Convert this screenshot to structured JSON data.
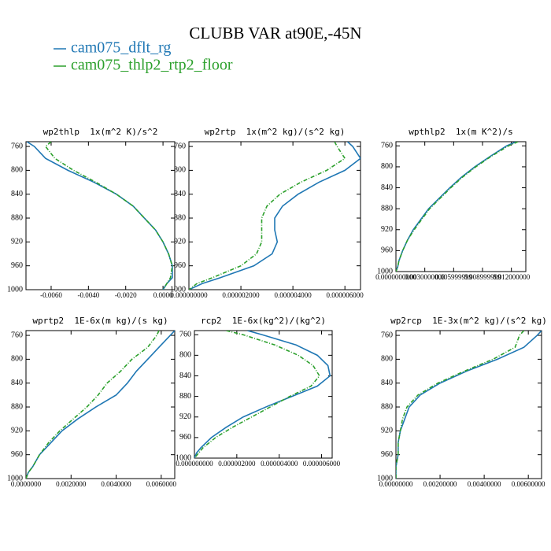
{
  "title": "CLUBB VAR at90E,-45N",
  "chart_data": [
    {
      "type": "line",
      "title": "wp2thlp  1x(m^2 K)/s^2",
      "y": [
        752,
        760,
        780,
        800,
        820,
        840,
        860,
        880,
        900,
        920,
        940,
        960,
        980,
        990,
        1000
      ],
      "ylim": [
        1000,
        752
      ],
      "yticks": [
        760,
        800,
        840,
        880,
        920,
        960,
        1000
      ],
      "xlim": [
        -0.00735,
        0.00063
      ],
      "xticks": [
        {
          "value": -0.006,
          "label": "-0.0060"
        },
        {
          "value": -0.004,
          "label": "-0.0040"
        },
        {
          "value": -0.002,
          "label": "-0.0020"
        },
        {
          "value": 0,
          "label": "0.0000"
        }
      ],
      "series": [
        {
          "name": "cam075_dflt_rg",
          "color": "#1f77b4",
          "values": [
            -0.0073,
            -0.0069,
            -0.0063,
            -0.0051,
            -0.0037,
            -0.0025,
            -0.0016,
            -0.001,
            -0.0004,
            0.0,
            0.0003,
            0.0005,
            0.0005,
            0.0002,
            0.0
          ]
        },
        {
          "name": "cam075_thlp2_rtp2_floor",
          "color": "#2ca02c",
          "values": [
            -0.006,
            -0.0063,
            -0.0058,
            -0.0048,
            -0.0036,
            -0.0025,
            -0.0016,
            -0.001,
            -0.0004,
            0.0,
            0.0003,
            0.0005,
            0.0004,
            0.0002,
            0.0
          ]
        }
      ]
    },
    {
      "type": "line",
      "title": "wp2rtp  1x(m^2 kg)/(s^2 kg)",
      "y": [
        752,
        760,
        780,
        800,
        820,
        840,
        860,
        880,
        900,
        920,
        940,
        960,
        980,
        990,
        1000
      ],
      "ylim": [
        1000,
        752
      ],
      "yticks": [
        760,
        800,
        840,
        880,
        920,
        960,
        1000
      ],
      "xlim": [
        0,
        6.6e-06
      ],
      "xticks": [
        {
          "value": 0,
          "label": "0.000000000"
        },
        {
          "value": 2e-06,
          "label": "0.000002000"
        },
        {
          "value": 4e-06,
          "label": "0.000004000"
        },
        {
          "value": 6e-06,
          "label": "0.000006000"
        }
      ],
      "series": [
        {
          "name": "cam075_dflt_rg",
          "color": "#1f77b4",
          "values": [
            6.1e-06,
            6.3e-06,
            6.6e-06,
            6e-06,
            5e-06,
            4.2e-06,
            3.6e-06,
            3.3e-06,
            3.3e-06,
            3.4e-06,
            3.2e-06,
            2.5e-06,
            1.2e-06,
            5e-07,
            0.0
          ]
        },
        {
          "name": "cam075_thlp2_rtp2_floor",
          "color": "#2ca02c",
          "values": [
            5.6e-06,
            5.7e-06,
            6e-06,
            5.3e-06,
            4.3e-06,
            3.5e-06,
            3e-06,
            2.8e-06,
            2.8e-06,
            2.8e-06,
            2.6e-06,
            2e-06,
            9e-07,
            3e-07,
            0.0
          ]
        }
      ]
    },
    {
      "type": "line",
      "title": "wpthlp2  1x(m K^2)/s",
      "y": [
        752,
        760,
        780,
        800,
        820,
        840,
        860,
        880,
        900,
        920,
        940,
        960,
        980,
        990,
        1000
      ],
      "ylim": [
        1000,
        752
      ],
      "yticks": [
        760,
        800,
        840,
        880,
        920,
        960,
        1000
      ],
      "xlim": [
        0,
        0.0135
      ],
      "xticks": [
        {
          "value": 0,
          "label": "0.0000000000"
        },
        {
          "value": 0.003,
          "label": "0.0030000000"
        },
        {
          "value": 0.006,
          "label": "0.005999999"
        },
        {
          "value": 0.009,
          "label": "0.008999999"
        },
        {
          "value": 0.012,
          "label": "0.012000000"
        }
      ],
      "series": [
        {
          "name": "cam075_dflt_rg",
          "color": "#1f77b4",
          "values": [
            0.0125,
            0.0115,
            0.0098,
            0.0082,
            0.0068,
            0.0056,
            0.0045,
            0.0034,
            0.0026,
            0.0018,
            0.0012,
            0.0007,
            0.0003,
            0.0002,
            0.0
          ]
        },
        {
          "name": "cam075_thlp2_rtp2_floor",
          "color": "#2ca02c",
          "values": [
            0.0127,
            0.0117,
            0.0099,
            0.0083,
            0.0069,
            0.0057,
            0.0046,
            0.0035,
            0.0027,
            0.0019,
            0.0012,
            0.0007,
            0.0003,
            0.0002,
            0.0
          ]
        }
      ]
    },
    {
      "type": "line",
      "title": "wprtp2  1E-6x(m kg)/(s kg)",
      "y": [
        752,
        760,
        780,
        800,
        820,
        840,
        860,
        880,
        900,
        920,
        940,
        960,
        980,
        990,
        1000
      ],
      "ylim": [
        1000,
        752
      ],
      "yticks": [
        760,
        800,
        840,
        880,
        920,
        960,
        1000
      ],
      "xlim": [
        0,
        0.0066
      ],
      "xticks": [
        {
          "value": 0,
          "label": "0.0000000"
        },
        {
          "value": 0.002,
          "label": "0.0020000"
        },
        {
          "value": 0.004,
          "label": "0.0040000"
        },
        {
          "value": 0.006,
          "label": "0.0060000"
        }
      ],
      "series": [
        {
          "name": "cam075_dflt_rg",
          "color": "#1f77b4",
          "values": [
            0.0066,
            0.0064,
            0.0059,
            0.0054,
            0.0049,
            0.0045,
            0.004,
            0.0031,
            0.0023,
            0.0016,
            0.0011,
            0.0006,
            0.0003,
            0.0001,
            0.0
          ]
        },
        {
          "name": "cam075_thlp2_rtp2_floor",
          "color": "#2ca02c",
          "values": [
            0.0059,
            0.0058,
            0.0054,
            0.0047,
            0.0042,
            0.0036,
            0.0032,
            0.0027,
            0.0021,
            0.0015,
            0.001,
            0.0006,
            0.0003,
            0.0001,
            0.0
          ]
        }
      ]
    },
    {
      "type": "line",
      "title": "rcp2  1E-6x(kg^2)/(kg^2)",
      "y": [
        752,
        760,
        780,
        800,
        820,
        840,
        860,
        880,
        900,
        920,
        940,
        960,
        980,
        990,
        1000
      ],
      "ylim": [
        1000,
        752
      ],
      "yticks": [
        760,
        800,
        840,
        880,
        920,
        960,
        1000
      ],
      "xlim": [
        0,
        6.5e-06
      ],
      "xticks": [
        {
          "value": 0,
          "label": "0.000000000"
        },
        {
          "value": 2e-06,
          "label": "0.000002000"
        },
        {
          "value": 4e-06,
          "label": "0.000004000"
        },
        {
          "value": 6e-06,
          "label": "0.000006000"
        }
      ],
      "series": [
        {
          "name": "cam075_dflt_rg",
          "color": "#1f77b4",
          "values": [
            2.5e-06,
            3.2e-06,
            4.8e-06,
            5.8e-06,
            6.3e-06,
            6.4e-06,
            5.8e-06,
            4.6e-06,
            3.4e-06,
            2.3e-06,
            1.5e-06,
            8e-07,
            3e-07,
            1e-07,
            0.0
          ]
        },
        {
          "name": "cam075_thlp2_rtp2_floor",
          "color": "#2ca02c",
          "values": [
            1.5e-06,
            2.3e-06,
            3.8e-06,
            4.9e-06,
            5.6e-06,
            5.9e-06,
            5.5e-06,
            4.5e-06,
            3.6e-06,
            2.7e-06,
            1.8e-06,
            1e-06,
            4e-07,
            2e-07,
            0.0
          ]
        }
      ]
    },
    {
      "type": "line",
      "title": "wp2rcp  1E-3x(m^2 kg)/(s^2 kg)",
      "y": [
        752,
        760,
        780,
        800,
        820,
        840,
        860,
        880,
        900,
        920,
        940,
        960,
        980,
        990,
        1000
      ],
      "ylim": [
        1000,
        752
      ],
      "yticks": [
        760,
        800,
        840,
        880,
        920,
        960,
        1000
      ],
      "xlim": [
        0,
        0.0066
      ],
      "xticks": [
        {
          "value": 0,
          "label": "0.00000000"
        },
        {
          "value": 0.002,
          "label": "0.00200000"
        },
        {
          "value": 0.004,
          "label": "0.00400000"
        },
        {
          "value": 0.006,
          "label": "0.00600000"
        }
      ],
      "series": [
        {
          "name": "cam075_dflt_rg",
          "color": "#1f77b4",
          "values": [
            0.0066,
            0.0064,
            0.0058,
            0.0046,
            0.0032,
            0.002,
            0.0011,
            0.0006,
            0.0004,
            0.0002,
            0.0001,
            0.0001,
            0.0,
            0.0,
            0.0
          ]
        },
        {
          "name": "cam075_thlp2_rtp2_floor",
          "color": "#2ca02c",
          "values": [
            0.0058,
            0.0056,
            0.0054,
            0.0044,
            0.0031,
            0.0019,
            0.001,
            0.0005,
            0.0003,
            0.0002,
            0.0001,
            0.0001,
            0.0,
            0.0,
            0.0
          ]
        }
      ]
    }
  ]
}
